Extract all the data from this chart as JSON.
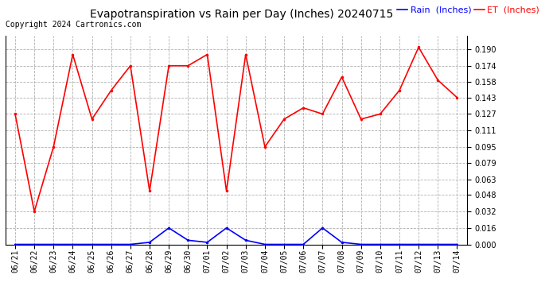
{
  "title": "Evapotranspiration vs Rain per Day (Inches) 20240715",
  "copyright": "Copyright 2024 Cartronics.com",
  "legend_rain": "Rain  (Inches)",
  "legend_et": "ET  (Inches)",
  "dates": [
    "06/21",
    "06/22",
    "06/23",
    "06/24",
    "06/25",
    "06/26",
    "06/27",
    "06/28",
    "06/29",
    "06/30",
    "07/01",
    "07/02",
    "07/03",
    "07/04",
    "07/05",
    "07/06",
    "07/07",
    "07/08",
    "07/09",
    "07/10",
    "07/11",
    "07/12",
    "07/13",
    "07/14"
  ],
  "et_values": [
    0.127,
    0.032,
    0.095,
    0.185,
    0.122,
    0.15,
    0.174,
    0.052,
    0.174,
    0.174,
    0.185,
    0.052,
    0.185,
    0.095,
    0.122,
    0.133,
    0.127,
    0.163,
    0.122,
    0.127,
    0.15,
    0.192,
    0.16,
    0.143
  ],
  "rain_values": [
    0.0,
    0.0,
    0.0,
    0.0,
    0.0,
    0.0,
    0.0,
    0.002,
    0.016,
    0.004,
    0.002,
    0.016,
    0.004,
    0.0,
    0.0,
    0.0,
    0.016,
    0.002,
    0.0,
    0.0,
    0.0,
    0.0,
    0.0,
    0.0
  ],
  "ylim": [
    0.0,
    0.2032
  ],
  "yticks": [
    0.0,
    0.016,
    0.032,
    0.048,
    0.063,
    0.079,
    0.095,
    0.111,
    0.127,
    0.143,
    0.158,
    0.174,
    0.19
  ],
  "et_color": "#ff0000",
  "rain_color": "#0000ff",
  "grid_color": "#b0b0b0",
  "bg_color": "#ffffff",
  "title_fontsize": 10,
  "copyright_fontsize": 7,
  "legend_fontsize": 8,
  "tick_fontsize": 7
}
